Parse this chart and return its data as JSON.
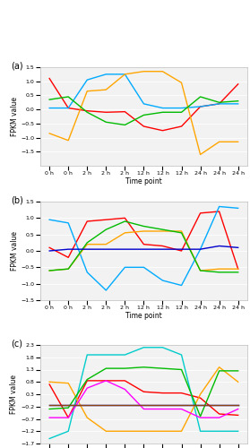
{
  "x_labels": [
    "0 h",
    "0 h",
    "2 h",
    "2 h",
    "2 h",
    "12 h",
    "12 h",
    "12 h",
    "24 h",
    "24 h",
    "24 h"
  ],
  "x_positions": [
    0,
    1,
    2,
    3,
    4,
    5,
    6,
    7,
    8,
    9,
    10
  ],
  "panel_a": {
    "title_label": "(a)",
    "ylabel": "FPKM value",
    "xlabel": "Time point",
    "ylim": [
      -2.0,
      1.5
    ],
    "yticks": [
      -1.5,
      -1.0,
      -0.5,
      0.0,
      0.5,
      1.0,
      1.5
    ],
    "series": {
      "MPK2": {
        "color": "#FF0000",
        "values": [
          1.1,
          0.05,
          -0.05,
          -0.1,
          -0.08,
          -0.6,
          -0.75,
          -0.6,
          0.1,
          0.2,
          0.9
        ]
      },
      "MPK8": {
        "color": "#00AAFF",
        "values": [
          0.05,
          0.05,
          1.05,
          1.25,
          1.25,
          0.2,
          0.05,
          0.05,
          0.1,
          0.2,
          0.2
        ]
      },
      "MPK11": {
        "color": "#FFA500",
        "values": [
          -0.85,
          -1.1,
          0.65,
          0.7,
          1.25,
          1.35,
          1.35,
          0.95,
          -1.6,
          -1.15,
          -1.15
        ]
      },
      "MPK17": {
        "color": "#00BB00",
        "values": [
          0.35,
          0.45,
          -0.1,
          -0.45,
          -0.55,
          -0.2,
          -0.1,
          -0.1,
          0.45,
          0.25,
          0.3
        ]
      }
    },
    "legend_ncol": 4
  },
  "panel_b": {
    "title_label": "(b)",
    "ylabel": "FPKM value",
    "xlabel": "Time point",
    "ylim": [
      -1.5,
      1.5
    ],
    "yticks": [
      -1.5,
      -1.0,
      -0.5,
      0.0,
      0.5,
      1.0,
      1.5
    ],
    "series": {
      "MKK2.1": {
        "color": "#FF0000",
        "values": [
          0.1,
          -0.2,
          0.9,
          0.95,
          1.0,
          0.2,
          0.15,
          0.0,
          1.15,
          1.2,
          -0.55
        ]
      },
      "MKK2.2": {
        "color": "#00AAFF",
        "values": [
          0.95,
          0.85,
          -0.65,
          -1.2,
          -0.5,
          -0.5,
          -0.9,
          -1.05,
          0.05,
          1.35,
          1.3
        ]
      },
      "MKK3.1": {
        "color": "#FFA500",
        "values": [
          -0.6,
          -0.55,
          0.2,
          0.2,
          0.55,
          0.6,
          0.6,
          0.6,
          -0.6,
          -0.55,
          -0.55
        ]
      },
      "MKK3.2": {
        "color": "#00BB00",
        "values": [
          -0.6,
          -0.55,
          0.25,
          0.65,
          0.9,
          0.75,
          0.65,
          0.55,
          -0.6,
          -0.65,
          -0.65
        ]
      },
      "MKK7": {
        "color": "#0000CC",
        "values": [
          0.0,
          0.05,
          0.05,
          0.05,
          0.05,
          0.05,
          0.05,
          0.05,
          0.05,
          0.15,
          0.1
        ]
      }
    },
    "legend_ncol": 5
  },
  "panel_c": {
    "title_label": "(c)",
    "ylabel": "FPKM value",
    "xlabel": "Time point",
    "ylim": [
      -1.7,
      2.3
    ],
    "yticks": [
      -1.7,
      -1.2,
      -0.7,
      -0.2,
      0.3,
      0.8,
      1.3,
      1.8,
      2.3
    ],
    "series": {
      "MEKK1": {
        "color": "#FF0000",
        "values": [
          0.7,
          -0.65,
          0.85,
          0.85,
          0.85,
          0.4,
          0.35,
          0.35,
          0.15,
          -0.5,
          -0.55
        ]
      },
      "MEKK2": {
        "color": "#00CCCC",
        "values": [
          -1.5,
          -1.2,
          1.9,
          1.9,
          1.9,
          2.2,
          2.2,
          1.9,
          -1.2,
          -1.2,
          -1.2
        ]
      },
      "MEKK17": {
        "color": "#FFA500",
        "values": [
          0.8,
          0.75,
          -0.65,
          -1.2,
          -1.2,
          -1.2,
          -1.2,
          -1.2,
          0.3,
          1.4,
          0.8
        ]
      },
      "MEKK17/18": {
        "color": "#00BB00",
        "values": [
          -0.3,
          -0.25,
          0.9,
          1.35,
          1.35,
          1.4,
          1.35,
          1.3,
          -0.6,
          1.25,
          1.25
        ]
      },
      "YODA.1": {
        "color": "#0000CC",
        "values": [
          -0.15,
          -0.15,
          -0.15,
          -0.15,
          -0.15,
          -0.15,
          -0.15,
          -0.15,
          -0.15,
          -0.15,
          -0.15
        ]
      },
      "YODA.2": {
        "color": "#FF00FF",
        "values": [
          -0.65,
          -0.65,
          0.55,
          0.85,
          0.5,
          -0.3,
          -0.3,
          -0.3,
          -0.65,
          -0.65,
          -0.3
        ]
      },
      "YODA.3": {
        "color": "#8B4513",
        "values": [
          -0.15,
          -0.15,
          -0.15,
          -0.15,
          -0.15,
          -0.15,
          -0.15,
          -0.15,
          -0.15,
          -0.15,
          -0.15
        ]
      }
    },
    "legend_ncol": 4
  },
  "background_color": "#f2f2f2",
  "grid_color": "white",
  "line_width": 1.0,
  "legend_fontsize": 4.5,
  "tick_fontsize": 4.5,
  "label_fontsize": 5.5,
  "panel_label_fontsize": 7.0
}
